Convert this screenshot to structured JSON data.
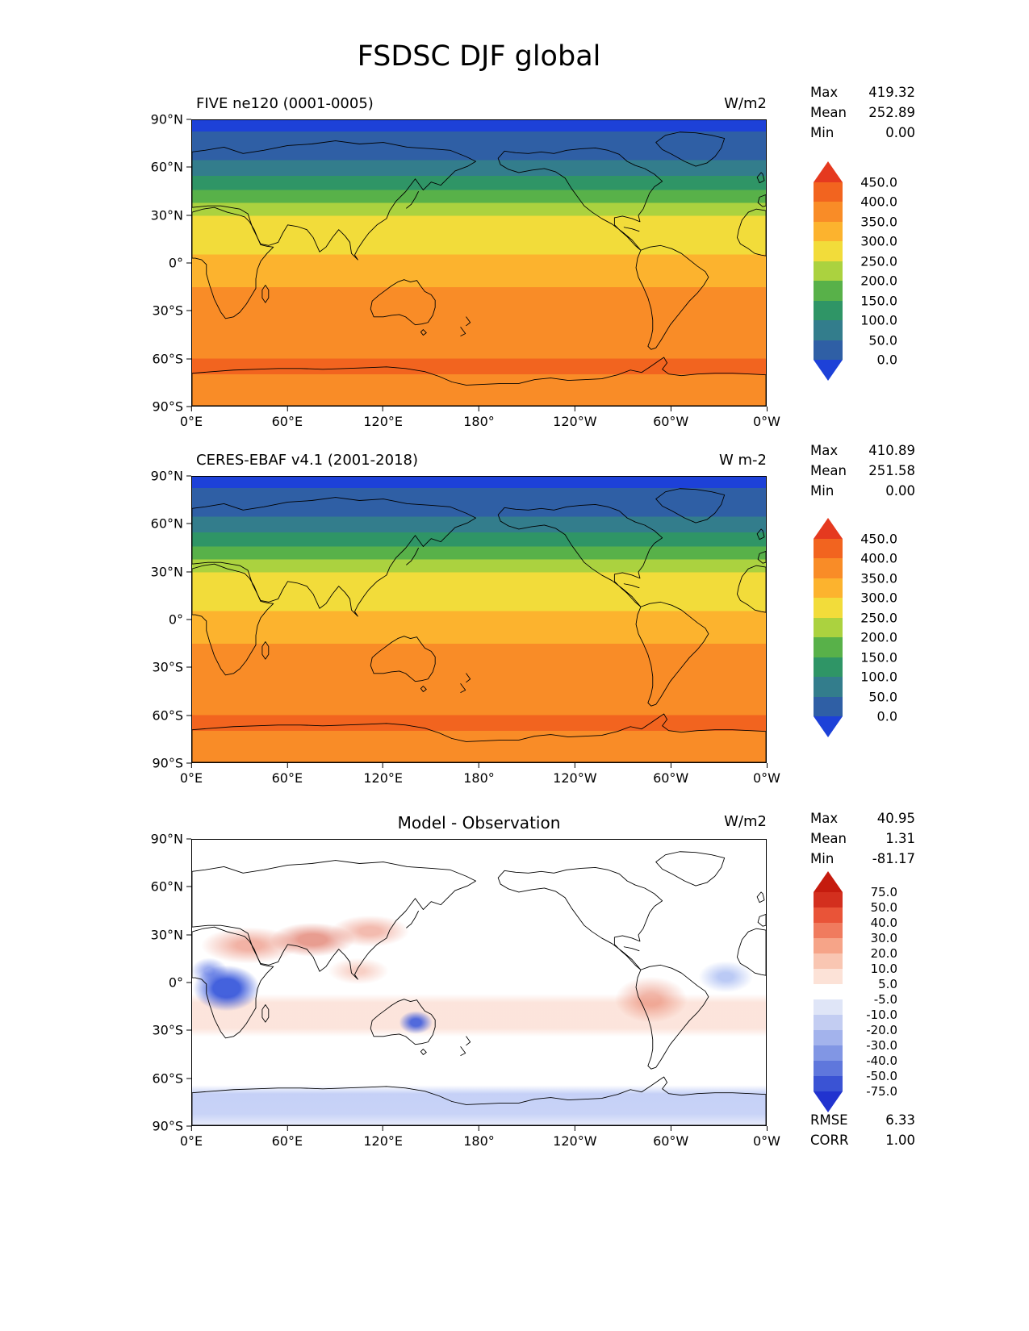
{
  "figure": {
    "title": "FSDSC DJF global"
  },
  "stat_labels": {
    "max": "Max",
    "mean": "Mean",
    "min": "Min",
    "rmse": "RMSE",
    "corr": "CORR"
  },
  "axes": {
    "lat_ticks": [
      "90°N",
      "60°N",
      "30°N",
      "0°",
      "30°S",
      "60°S",
      "90°S"
    ],
    "lon_ticks": [
      "0°E",
      "60°E",
      "120°E",
      "180°",
      "120°W",
      "60°W",
      "0°W"
    ]
  },
  "panels": [
    {
      "title": "FIVE ne120 (0001-0005)",
      "unit": "W/m2",
      "stats": {
        "max": "419.32",
        "mean": "252.89",
        "min": "0.00"
      }
    },
    {
      "title": "CERES-EBAF v4.1 (2001-2018)",
      "unit": "W m-2",
      "stats": {
        "max": "410.89",
        "mean": "251.58",
        "min": "0.00"
      }
    },
    {
      "title": "Model - Observation",
      "unit": "W/m2",
      "stats": {
        "max": "40.95",
        "mean": "1.31",
        "min": "-81.17"
      },
      "metrics": {
        "rmse": "6.33",
        "corr": "1.00"
      }
    }
  ],
  "colorbar_flux": {
    "tick_labels": [
      "450.0",
      "400.0",
      "350.0",
      "300.0",
      "250.0",
      "200.0",
      "150.0",
      "100.0",
      "50.0",
      "0.0"
    ],
    "segment_colors": [
      "#f2641f",
      "#f98c27",
      "#fcb32e",
      "#f2dc3a",
      "#abd23f",
      "#58b149",
      "#2f9566",
      "#337d8c",
      "#2f5fa5"
    ],
    "arrow_top": "#e5391f",
    "arrow_bottom": "#1d41d8"
  },
  "colorbar_diff": {
    "tick_labels": [
      "75.0",
      "50.0",
      "40.0",
      "30.0",
      "20.0",
      "10.0",
      "5.0",
      "-5.0",
      "-10.0",
      "-20.0",
      "-30.0",
      "-40.0",
      "-50.0",
      "-75.0"
    ],
    "segment_colors": [
      "#d32f1e",
      "#e95438",
      "#f07b5e",
      "#f6a488",
      "#f9c6b2",
      "#fce2d7",
      "#ffffff",
      "#dfe5f7",
      "#c3cdf2",
      "#a3b3ec",
      "#8196e4",
      "#5f77dc",
      "#3a53d4"
    ],
    "arrow_top": "#c51b0e",
    "arrow_bottom": "#2133cf"
  },
  "chart_data": [
    {
      "type": "heatmap",
      "subtype": "global-filled-contour-map",
      "title": "FIVE ne120 (0001-0005)",
      "variable": "FSDSC",
      "season": "DJF",
      "region": "global",
      "units": "W/m2",
      "stats": {
        "max": 419.32,
        "mean": 252.89,
        "min": 0.0
      },
      "contour_levels": [
        0,
        50,
        100,
        150,
        200,
        250,
        300,
        350,
        400,
        450
      ],
      "lat_range": [
        -90,
        90
      ],
      "lon_range_deg_east": [
        0,
        360
      ],
      "approx_zonal_mean": {
        "lat": [
          90,
          75,
          60,
          45,
          30,
          15,
          0,
          -15,
          -30,
          -45,
          -60,
          -75,
          -90
        ],
        "value": [
          0,
          5,
          45,
          120,
          210,
          280,
          320,
          355,
          380,
          390,
          400,
          395,
          390
        ]
      }
    },
    {
      "type": "heatmap",
      "subtype": "global-filled-contour-map",
      "title": "CERES-EBAF v4.1 (2001-2018)",
      "variable": "FSDSC",
      "season": "DJF",
      "region": "global",
      "units": "W m-2",
      "stats": {
        "max": 410.89,
        "mean": 251.58,
        "min": 0.0
      },
      "contour_levels": [
        0,
        50,
        100,
        150,
        200,
        250,
        300,
        350,
        400,
        450
      ],
      "lat_range": [
        -90,
        90
      ],
      "lon_range_deg_east": [
        0,
        360
      ],
      "approx_zonal_mean": {
        "lat": [
          90,
          75,
          60,
          45,
          30,
          15,
          0,
          -15,
          -30,
          -45,
          -60,
          -75,
          -90
        ],
        "value": [
          0,
          5,
          45,
          120,
          205,
          278,
          318,
          352,
          378,
          388,
          398,
          392,
          388
        ]
      }
    },
    {
      "type": "heatmap",
      "subtype": "difference-map",
      "title": "Model - Observation",
      "units": "W/m2",
      "stats": {
        "max": 40.95,
        "mean": 1.31,
        "min": -81.17
      },
      "metrics": {
        "rmse": 6.33,
        "corr": 1.0
      },
      "contour_levels": [
        -75,
        -50,
        -40,
        -30,
        -20,
        -10,
        -5,
        5,
        10,
        20,
        30,
        40,
        50,
        75
      ],
      "notable_anomalies": [
        {
          "region": "Equatorial Central Africa (Congo basin)",
          "sign": "negative",
          "approx_value": -60
        },
        {
          "region": "North Africa / Middle East / northern India belt",
          "sign": "positive",
          "approx_value": 20
        },
        {
          "region": "Eastern interior Australia",
          "sign": "negative",
          "approx_value": -30
        },
        {
          "region": "Southern subtropical ocean band",
          "sign": "positive",
          "approx_value": 10
        },
        {
          "region": "Tropical South America",
          "sign": "positive",
          "approx_value": 15
        },
        {
          "region": "Tropical Atlantic near 20W",
          "sign": "negative",
          "approx_value": -10
        },
        {
          "region": "Antarctic coastal margin",
          "sign": "negative",
          "approx_value": -15
        }
      ]
    }
  ]
}
